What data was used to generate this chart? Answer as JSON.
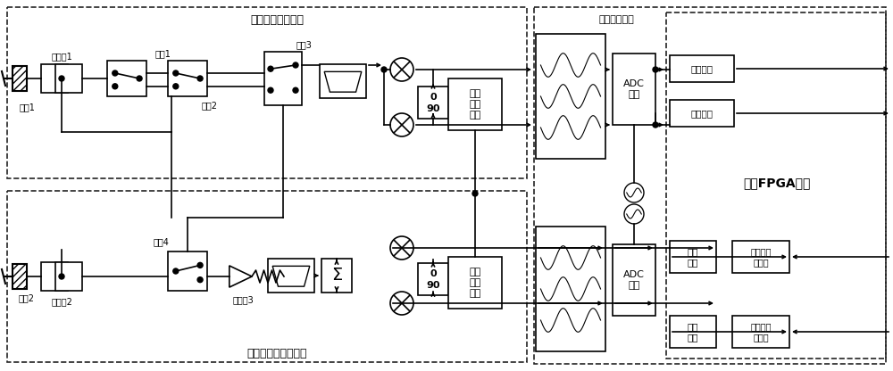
{
  "bg_color": "#ffffff",
  "figsize": [
    10.0,
    4.16
  ],
  "dpi": 100,
  "labels": {
    "coupler1": "耦合器1",
    "coupler2": "耦合器2",
    "coupler3": "耦合器3",
    "port1": "端口1",
    "port2": "端口2",
    "switch1": "开关1",
    "switch2": "开关2",
    "switch3": "开关3",
    "switch4": "开关4",
    "sig_rx": "信号变频接收单元",
    "sig_tx": "信号直接上变频单元",
    "local_osc": "本振\n合成\n电路",
    "adc_collect": "ADC\n采集",
    "adc_gen": "ADC\n产生",
    "digital_unit": "数字处理单元",
    "shared_fpga": "共享FPGA单元",
    "extract_filter": "抽取滤波",
    "interp_filter": "内插\n滤波",
    "prbs": "伪随机序\n列生成"
  }
}
